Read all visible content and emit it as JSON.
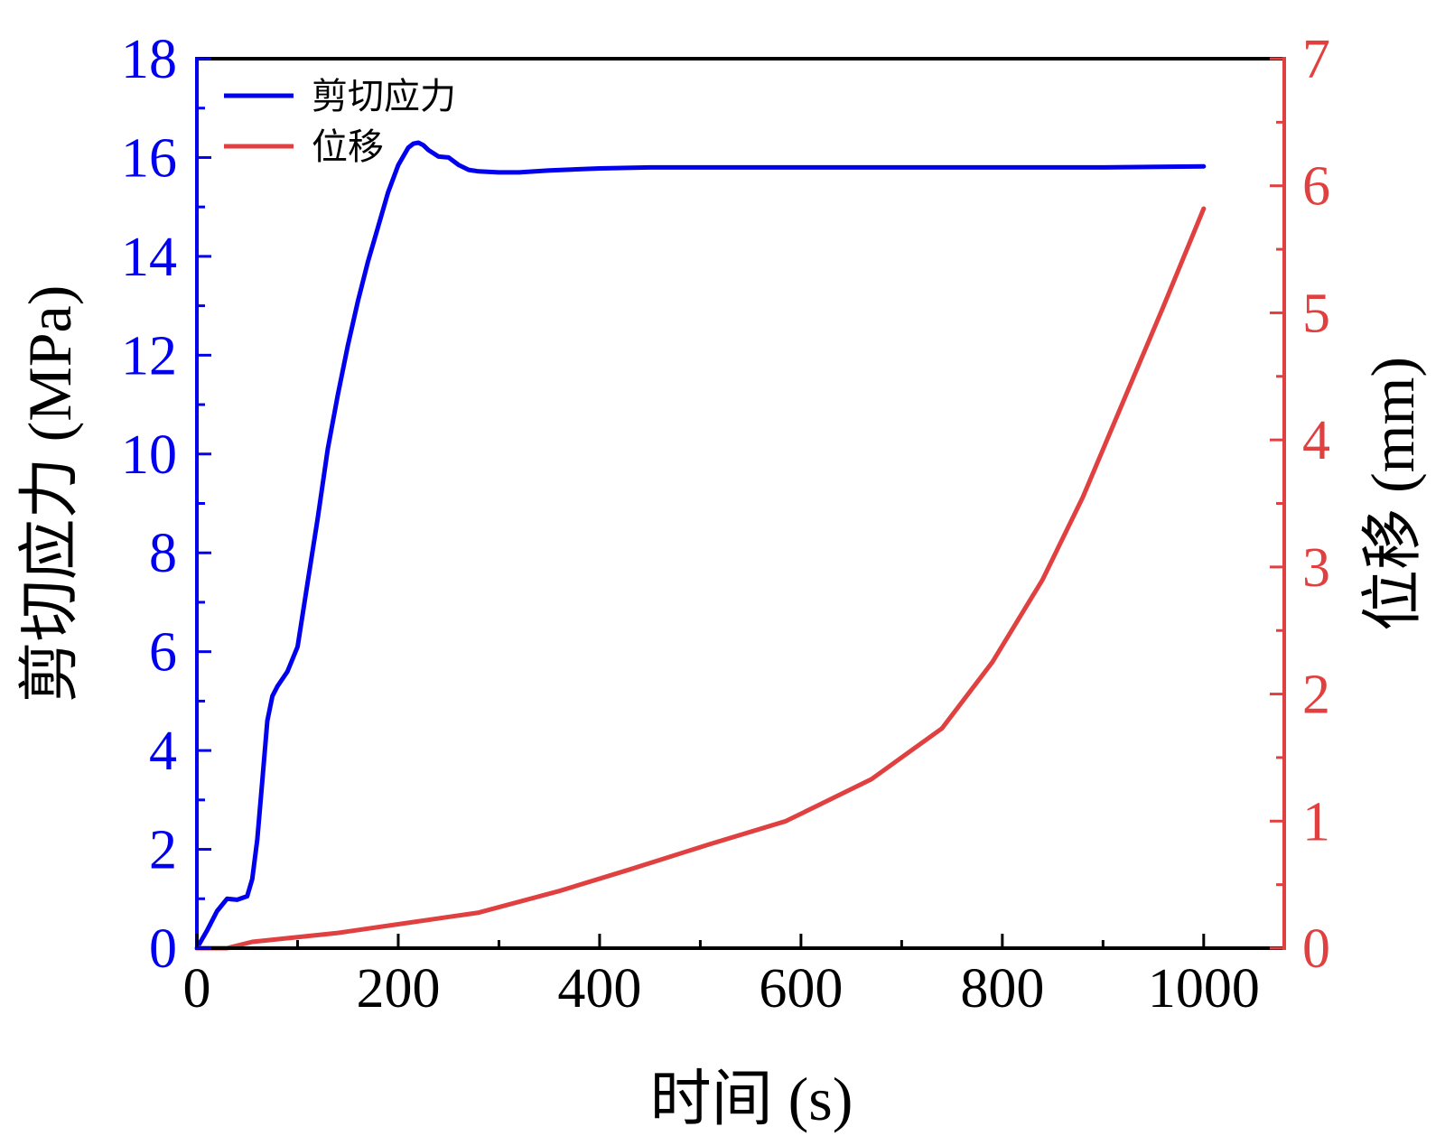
{
  "chart_data": {
    "type": "line",
    "xlabel": "时间 (s)",
    "ylabel_left": "剪切应力 (MPa)",
    "ylabel_right": "位移 (mm)",
    "xlim": [
      0,
      1080
    ],
    "ylim_left": [
      0,
      18
    ],
    "ylim_right": [
      0,
      7
    ],
    "x_ticks": [
      "0",
      "200",
      "400",
      "600",
      "800",
      "1000"
    ],
    "y_left_ticks": [
      "0",
      "2",
      "4",
      "6",
      "8",
      "10",
      "12",
      "14",
      "16",
      "18"
    ],
    "y_right_ticks": [
      "0",
      "1",
      "2",
      "3",
      "4",
      "5",
      "6",
      "7"
    ],
    "legend_position": "top-left",
    "grid": false,
    "colors": {
      "left_axis": "#0000ee",
      "right_axis": "#e04040",
      "frame": "#000000"
    },
    "series": [
      {
        "name": "剪切应力",
        "axis": "left",
        "color": "#0000ee",
        "x": [
          0,
          10,
          20,
          30,
          40,
          50,
          55,
          60,
          65,
          70,
          75,
          80,
          90,
          100,
          110,
          120,
          130,
          140,
          150,
          160,
          170,
          180,
          190,
          200,
          210,
          215,
          220,
          225,
          230,
          240,
          250,
          260,
          270,
          280,
          300,
          320,
          350,
          400,
          450,
          500,
          600,
          700,
          800,
          900,
          1000
        ],
        "y": [
          0,
          0.35,
          0.75,
          1.0,
          0.98,
          1.05,
          1.4,
          2.2,
          3.4,
          4.6,
          5.1,
          5.3,
          5.6,
          6.1,
          7.4,
          8.7,
          10.1,
          11.2,
          12.2,
          13.1,
          13.9,
          14.6,
          15.3,
          15.85,
          16.2,
          16.28,
          16.3,
          16.25,
          16.15,
          16.02,
          16.0,
          15.85,
          15.75,
          15.72,
          15.7,
          15.7,
          15.74,
          15.78,
          15.8,
          15.8,
          15.8,
          15.8,
          15.8,
          15.8,
          15.82
        ]
      },
      {
        "name": "位移",
        "axis": "right",
        "color": "#e04040",
        "x": [
          0,
          30,
          55,
          140,
          210,
          280,
          360,
          430,
          510,
          585,
          670,
          740,
          790,
          840,
          880,
          920,
          960,
          1000
        ],
        "y": [
          0,
          0.0,
          0.05,
          0.12,
          0.2,
          0.28,
          0.45,
          0.62,
          0.82,
          1.0,
          1.33,
          1.73,
          2.25,
          2.9,
          3.55,
          4.3,
          5.05,
          5.82
        ]
      }
    ]
  }
}
